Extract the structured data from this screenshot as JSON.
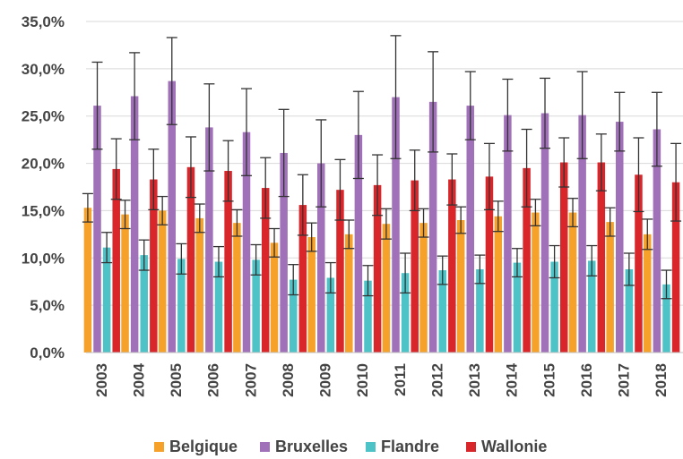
{
  "chart_data": {
    "type": "bar",
    "title": "",
    "xlabel": "",
    "ylabel": "",
    "ylim": [
      0,
      35
    ],
    "y_ticks": [
      "0,0%",
      "5,0%",
      "10,0%",
      "15,0%",
      "20,0%",
      "25,0%",
      "30,0%",
      "35,0%"
    ],
    "y_tick_values": [
      0,
      5,
      10,
      15,
      20,
      25,
      30,
      35
    ],
    "grid": true,
    "legend_position": "bottom",
    "categories": [
      "2003",
      "2004",
      "2005",
      "2006",
      "2007",
      "2008",
      "2009",
      "2010",
      "2011",
      "2012",
      "2013",
      "2014",
      "2015",
      "2016",
      "2017",
      "2018"
    ],
    "series": [
      {
        "name": "Belgique",
        "color": "#f5a12a",
        "values": [
          15.3,
          14.6,
          15.0,
          14.2,
          13.7,
          11.6,
          12.2,
          12.5,
          13.6,
          13.7,
          14.0,
          14.4,
          14.8,
          14.8,
          13.8,
          12.5
        ],
        "error": [
          1.5,
          1.5,
          1.5,
          1.5,
          1.4,
          1.5,
          1.5,
          1.5,
          1.6,
          1.5,
          1.4,
          1.6,
          1.4,
          1.5,
          1.5,
          1.6
        ]
      },
      {
        "name": "Bruxelles",
        "color": "#a070b8",
        "values": [
          26.1,
          27.1,
          28.7,
          23.8,
          23.3,
          21.1,
          20.0,
          23.0,
          27.0,
          26.5,
          26.1,
          25.1,
          25.3,
          25.1,
          24.4,
          23.6
        ],
        "error": [
          4.6,
          4.6,
          4.6,
          4.6,
          4.6,
          4.6,
          4.6,
          4.6,
          6.5,
          5.3,
          3.6,
          3.8,
          3.7,
          4.6,
          3.1,
          3.9
        ]
      },
      {
        "name": "Flandre",
        "color": "#4dc3c8",
        "values": [
          11.1,
          10.3,
          9.9,
          9.6,
          9.8,
          7.7,
          7.9,
          7.6,
          8.4,
          8.7,
          8.8,
          9.5,
          9.6,
          9.7,
          8.8,
          7.2
        ],
        "error": [
          1.6,
          1.6,
          1.6,
          1.6,
          1.6,
          1.6,
          1.6,
          1.6,
          2.1,
          1.5,
          1.5,
          1.5,
          1.7,
          1.6,
          1.7,
          1.5
        ]
      },
      {
        "name": "Wallonie",
        "color": "#d9262b",
        "values": [
          19.4,
          18.3,
          19.6,
          19.2,
          17.4,
          15.6,
          17.2,
          17.7,
          18.2,
          18.3,
          18.6,
          19.5,
          20.1,
          20.1,
          18.8,
          18.0
        ],
        "error": [
          3.2,
          3.2,
          3.2,
          3.2,
          3.2,
          3.2,
          3.2,
          3.2,
          3.2,
          2.7,
          3.5,
          4.1,
          2.6,
          3.0,
          3.9,
          4.1
        ]
      }
    ]
  }
}
